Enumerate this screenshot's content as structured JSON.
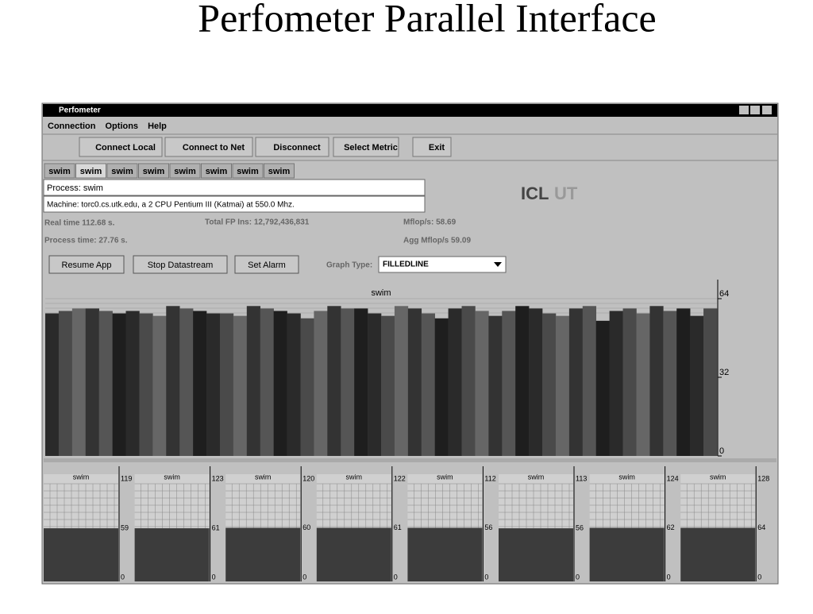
{
  "slide_title": "Perfometer Parallel Interface",
  "window": {
    "title": "Perfometer",
    "menu": [
      "Connection",
      "Options",
      "Help"
    ],
    "toolbar": [
      "Connect Local",
      "Connect to Net",
      "Disconnect",
      "Select Metric",
      "Exit"
    ],
    "tabs": [
      "swim",
      "swim",
      "swim",
      "swim",
      "swim",
      "swim",
      "swim",
      "swim"
    ],
    "process": "Process: swim",
    "machine": "Machine: torc0.cs.utk.edu, a 2 CPU Pentium III (Katmai) at 550.0 Mhz.",
    "logo": [
      "ICL",
      "UT"
    ],
    "stats": {
      "real_time": "Real time  112.68  s.",
      "total_fp": "Total FP Ins:  12,792,436,831",
      "mflops": "Mflop/s:  58.69",
      "process_time": "Process time:  27.76  s.",
      "agg_mflops": "Agg Mflop/s  59.09"
    },
    "buttons": [
      "Resume App",
      "Stop Datastream",
      "Set Alarm"
    ],
    "graph_type_label": "Graph Type:",
    "graph_type": "FILLEDLINE",
    "main_graph": {
      "title": "swim",
      "ylim": [
        0,
        64
      ],
      "yticks": [
        0,
        32,
        64
      ],
      "values": [
        58,
        59,
        60,
        60,
        59,
        58,
        59,
        58,
        57,
        61,
        60,
        59,
        58,
        58,
        57,
        61,
        60,
        59,
        58,
        56,
        59,
        61,
        60,
        60,
        58,
        57,
        61,
        60,
        58,
        56,
        60,
        61,
        59,
        57,
        59,
        61,
        60,
        58,
        57,
        60,
        61,
        55,
        59,
        60,
        58,
        61,
        59,
        60,
        57,
        60
      ]
    },
    "mini_graphs": [
      {
        "title": "swim",
        "max": 119,
        "value": 59,
        "min": 0
      },
      {
        "title": "swim",
        "max": 123,
        "value": 61,
        "min": 0
      },
      {
        "title": "swim",
        "max": 120,
        "value": 60,
        "min": 0
      },
      {
        "title": "swim",
        "max": 122,
        "value": 61,
        "min": 0
      },
      {
        "title": "swim",
        "max": 112,
        "value": 56,
        "min": 0
      },
      {
        "title": "swim",
        "max": 113,
        "value": 56,
        "min": 0
      },
      {
        "title": "swim",
        "max": 124,
        "value": 62,
        "min": 0
      },
      {
        "title": "swim",
        "max": 128,
        "value": 64,
        "min": 0
      }
    ]
  }
}
